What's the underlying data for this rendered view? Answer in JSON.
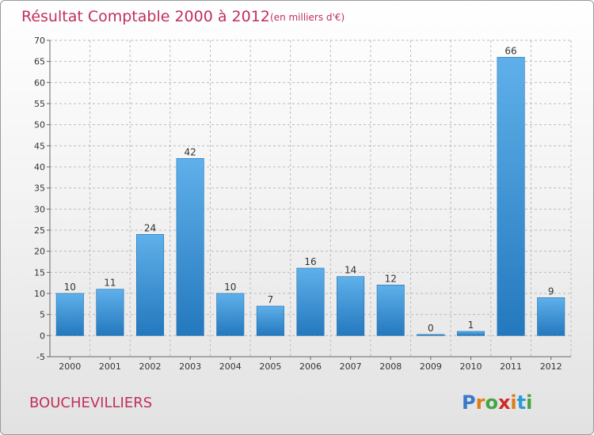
{
  "header": {
    "title": "Résultat Comptable 2000 à 2012",
    "subtitle": "(en milliers d'€)"
  },
  "footer": {
    "town": "BOUCHEVILLIERS",
    "logo_letters": [
      "P",
      "r",
      "o",
      "x",
      "i",
      "t",
      "i"
    ],
    "logo_colors": [
      "#3a78c8",
      "#e07b1a",
      "#44a544",
      "#d02828",
      "#e07b1a",
      "#2a9ad8",
      "#44a544"
    ]
  },
  "colors": {
    "bar_top": "#5fb0ea",
    "bar_bottom": "#2478bd",
    "title": "#c0305a",
    "grid": "#bbbbbb"
  },
  "chart_data": {
    "type": "bar",
    "title": "Résultat Comptable 2000 à 2012",
    "subtitle": "(en milliers d'€)",
    "xlabel": "",
    "ylabel": "",
    "categories": [
      "2000",
      "2001",
      "2002",
      "2003",
      "2004",
      "2005",
      "2006",
      "2007",
      "2008",
      "2009",
      "2010",
      "2011",
      "2012"
    ],
    "values": [
      10,
      11,
      24,
      42,
      10,
      7,
      16,
      14,
      12,
      0,
      1,
      66,
      9
    ],
    "ylim": [
      -5,
      70
    ],
    "yticks": [
      -5,
      0,
      5,
      10,
      15,
      20,
      25,
      30,
      35,
      40,
      45,
      50,
      55,
      60,
      65,
      70
    ],
    "grid": true,
    "legend": "none"
  }
}
